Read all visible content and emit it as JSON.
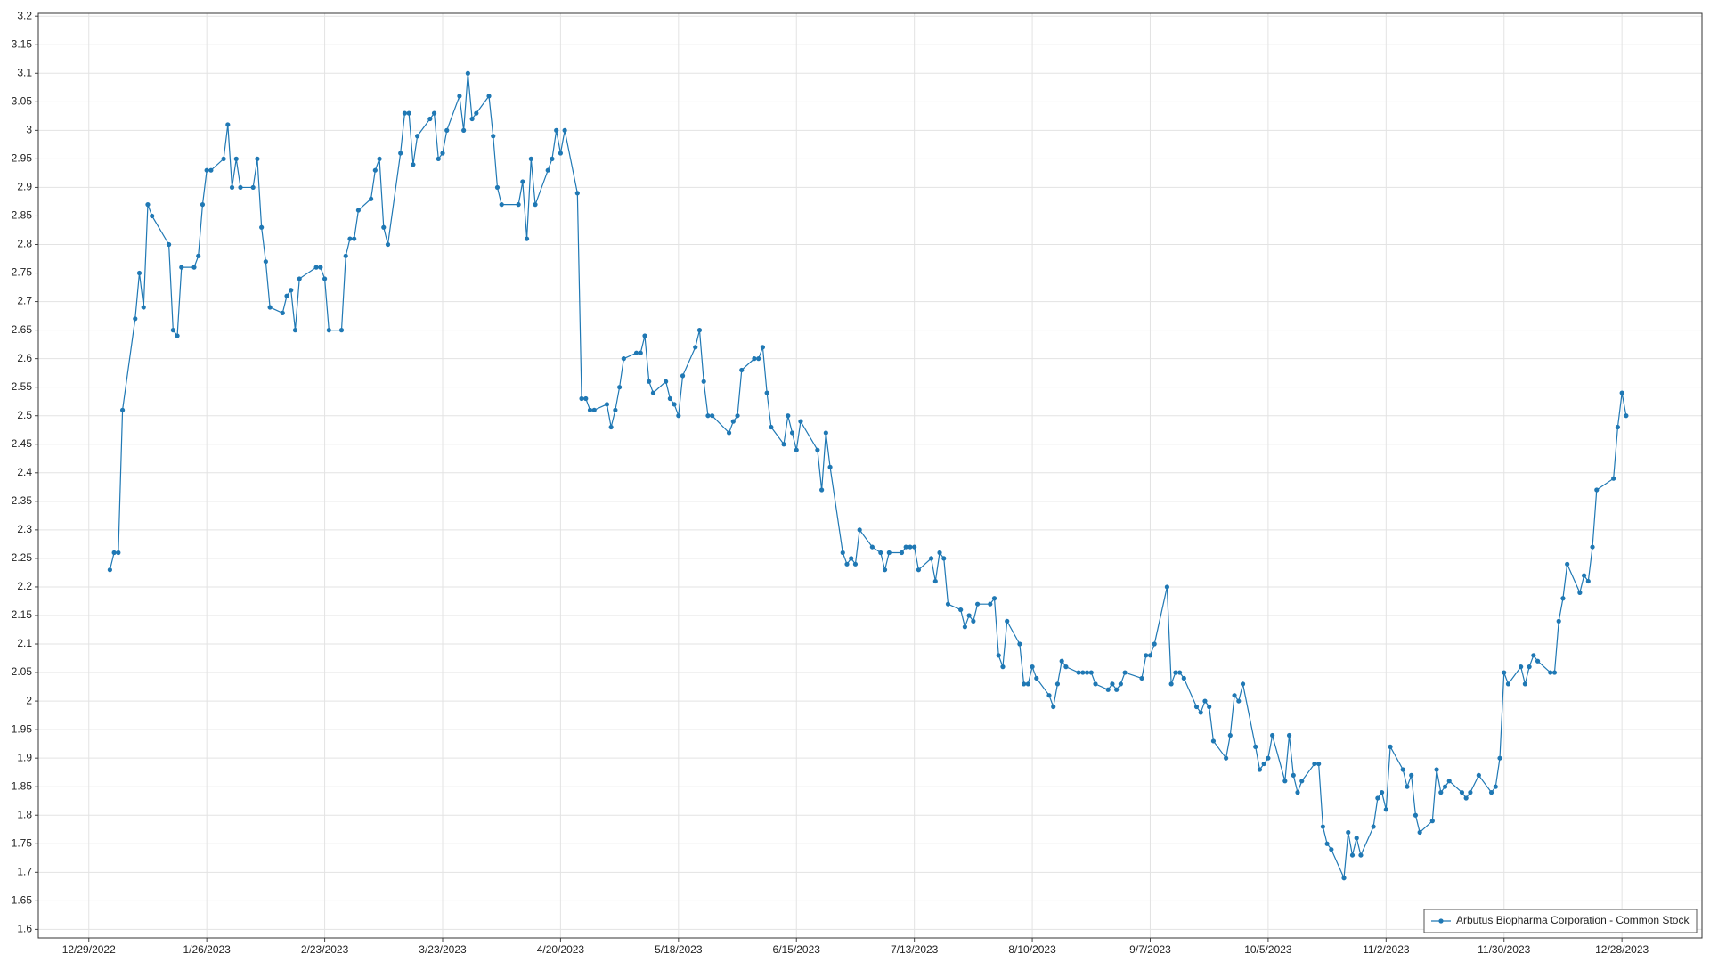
{
  "chart_data": {
    "type": "line",
    "x": [
      "2023-01-03",
      "2023-01-04",
      "2023-01-05",
      "2023-01-06",
      "2023-01-09",
      "2023-01-10",
      "2023-01-11",
      "2023-01-12",
      "2023-01-13",
      "2023-01-17",
      "2023-01-18",
      "2023-01-19",
      "2023-01-20",
      "2023-01-23",
      "2023-01-24",
      "2023-01-25",
      "2023-01-26",
      "2023-01-27",
      "2023-01-30",
      "2023-01-31",
      "2023-02-01",
      "2023-02-02",
      "2023-02-03",
      "2023-02-06",
      "2023-02-07",
      "2023-02-08",
      "2023-02-09",
      "2023-02-10",
      "2023-02-13",
      "2023-02-14",
      "2023-02-15",
      "2023-02-16",
      "2023-02-17",
      "2023-02-21",
      "2023-02-22",
      "2023-02-23",
      "2023-02-24",
      "2023-02-27",
      "2023-02-28",
      "2023-03-01",
      "2023-03-02",
      "2023-03-03",
      "2023-03-06",
      "2023-03-07",
      "2023-03-08",
      "2023-03-09",
      "2023-03-10",
      "2023-03-13",
      "2023-03-14",
      "2023-03-15",
      "2023-03-16",
      "2023-03-17",
      "2023-03-20",
      "2023-03-21",
      "2023-03-22",
      "2023-03-23",
      "2023-03-24",
      "2023-03-27",
      "2023-03-28",
      "2023-03-29",
      "2023-03-30",
      "2023-03-31",
      "2023-04-03",
      "2023-04-04",
      "2023-04-05",
      "2023-04-06",
      "2023-04-10",
      "2023-04-11",
      "2023-04-12",
      "2023-04-13",
      "2023-04-14",
      "2023-04-17",
      "2023-04-18",
      "2023-04-19",
      "2023-04-20",
      "2023-04-21",
      "2023-04-24",
      "2023-04-25",
      "2023-04-26",
      "2023-04-27",
      "2023-04-28",
      "2023-05-01",
      "2023-05-02",
      "2023-05-03",
      "2023-05-04",
      "2023-05-05",
      "2023-05-08",
      "2023-05-09",
      "2023-05-10",
      "2023-05-11",
      "2023-05-12",
      "2023-05-15",
      "2023-05-16",
      "2023-05-17",
      "2023-05-18",
      "2023-05-19",
      "2023-05-22",
      "2023-05-23",
      "2023-05-24",
      "2023-05-25",
      "2023-05-26",
      "2023-05-30",
      "2023-05-31",
      "2023-06-01",
      "2023-06-02",
      "2023-06-05",
      "2023-06-06",
      "2023-06-07",
      "2023-06-08",
      "2023-06-09",
      "2023-06-12",
      "2023-06-13",
      "2023-06-14",
      "2023-06-15",
      "2023-06-16",
      "2023-06-20",
      "2023-06-21",
      "2023-06-22",
      "2023-06-23",
      "2023-06-26",
      "2023-06-27",
      "2023-06-28",
      "2023-06-29",
      "2023-06-30",
      "2023-07-03",
      "2023-07-05",
      "2023-07-06",
      "2023-07-07",
      "2023-07-10",
      "2023-07-11",
      "2023-07-12",
      "2023-07-13",
      "2023-07-14",
      "2023-07-17",
      "2023-07-18",
      "2023-07-19",
      "2023-07-20",
      "2023-07-21",
      "2023-07-24",
      "2023-07-25",
      "2023-07-26",
      "2023-07-27",
      "2023-07-28",
      "2023-07-31",
      "2023-08-01",
      "2023-08-02",
      "2023-08-03",
      "2023-08-04",
      "2023-08-07",
      "2023-08-08",
      "2023-08-09",
      "2023-08-10",
      "2023-08-11",
      "2023-08-14",
      "2023-08-15",
      "2023-08-16",
      "2023-08-17",
      "2023-08-18",
      "2023-08-21",
      "2023-08-22",
      "2023-08-23",
      "2023-08-24",
      "2023-08-25",
      "2023-08-28",
      "2023-08-29",
      "2023-08-30",
      "2023-08-31",
      "2023-09-01",
      "2023-09-05",
      "2023-09-06",
      "2023-09-07",
      "2023-09-08",
      "2023-09-11",
      "2023-09-12",
      "2023-09-13",
      "2023-09-14",
      "2023-09-15",
      "2023-09-18",
      "2023-09-19",
      "2023-09-20",
      "2023-09-21",
      "2023-09-22",
      "2023-09-25",
      "2023-09-26",
      "2023-09-27",
      "2023-09-28",
      "2023-09-29",
      "2023-10-02",
      "2023-10-03",
      "2023-10-04",
      "2023-10-05",
      "2023-10-06",
      "2023-10-09",
      "2023-10-10",
      "2023-10-11",
      "2023-10-12",
      "2023-10-13",
      "2023-10-16",
      "2023-10-17",
      "2023-10-18",
      "2023-10-19",
      "2023-10-20",
      "2023-10-23",
      "2023-10-24",
      "2023-10-25",
      "2023-10-26",
      "2023-10-27",
      "2023-10-30",
      "2023-10-31",
      "2023-11-01",
      "2023-11-02",
      "2023-11-03",
      "2023-11-06",
      "2023-11-07",
      "2023-11-08",
      "2023-11-09",
      "2023-11-10",
      "2023-11-13",
      "2023-11-14",
      "2023-11-15",
      "2023-11-16",
      "2023-11-17",
      "2023-11-20",
      "2023-11-21",
      "2023-11-22",
      "2023-11-24",
      "2023-11-27",
      "2023-11-28",
      "2023-11-29",
      "2023-11-30",
      "2023-12-01",
      "2023-12-04",
      "2023-12-05",
      "2023-12-06",
      "2023-12-07",
      "2023-12-08",
      "2023-12-11",
      "2023-12-12",
      "2023-12-13",
      "2023-12-14",
      "2023-12-15",
      "2023-12-18",
      "2023-12-19",
      "2023-12-20",
      "2023-12-21",
      "2023-12-22",
      "2023-12-26",
      "2023-12-27",
      "2023-12-28",
      "2023-12-29"
    ],
    "series": [
      {
        "name": "Arbutus Biopharma Corporation - Common Stock",
        "color": "#1f78b4",
        "values": [
          2.23,
          2.26,
          2.26,
          2.51,
          2.67,
          2.75,
          2.69,
          2.87,
          2.85,
          2.8,
          2.65,
          2.64,
          2.76,
          2.76,
          2.78,
          2.87,
          2.93,
          2.93,
          2.95,
          3.01,
          2.9,
          2.95,
          2.9,
          2.9,
          2.95,
          2.83,
          2.77,
          2.69,
          2.68,
          2.71,
          2.72,
          2.65,
          2.74,
          2.76,
          2.76,
          2.74,
          2.65,
          2.65,
          2.78,
          2.81,
          2.81,
          2.86,
          2.88,
          2.93,
          2.95,
          2.83,
          2.8,
          2.96,
          3.03,
          3.03,
          2.94,
          2.99,
          3.02,
          3.03,
          2.95,
          2.96,
          3.0,
          3.06,
          3.0,
          3.1,
          3.02,
          3.03,
          3.06,
          2.99,
          2.9,
          2.87,
          2.87,
          2.91,
          2.81,
          2.95,
          2.87,
          2.93,
          2.95,
          3.0,
          2.96,
          3.0,
          2.89,
          2.53,
          2.53,
          2.51,
          2.51,
          2.52,
          2.48,
          2.51,
          2.55,
          2.6,
          2.61,
          2.61,
          2.64,
          2.56,
          2.54,
          2.56,
          2.53,
          2.52,
          2.5,
          2.57,
          2.62,
          2.65,
          2.56,
          2.5,
          2.5,
          2.47,
          2.49,
          2.5,
          2.58,
          2.6,
          2.6,
          2.62,
          2.54,
          2.48,
          2.45,
          2.5,
          2.47,
          2.44,
          2.49,
          2.44,
          2.37,
          2.47,
          2.41,
          2.26,
          2.24,
          2.25,
          2.24,
          2.3,
          2.27,
          2.26,
          2.23,
          2.26,
          2.26,
          2.27,
          2.27,
          2.27,
          2.23,
          2.25,
          2.21,
          2.26,
          2.25,
          2.17,
          2.16,
          2.13,
          2.15,
          2.14,
          2.17,
          2.17,
          2.18,
          2.08,
          2.06,
          2.14,
          2.1,
          2.03,
          2.03,
          2.06,
          2.04,
          2.01,
          1.99,
          2.03,
          2.07,
          2.06,
          2.05,
          2.05,
          2.05,
          2.05,
          2.03,
          2.02,
          2.03,
          2.02,
          2.03,
          2.05,
          2.04,
          2.08,
          2.08,
          2.1,
          2.2,
          2.03,
          2.05,
          2.05,
          2.04,
          1.99,
          1.98,
          2.0,
          1.99,
          1.93,
          1.9,
          1.94,
          2.01,
          2.0,
          2.03,
          1.92,
          1.88,
          1.89,
          1.9,
          1.94,
          1.86,
          1.94,
          1.87,
          1.84,
          1.86,
          1.89,
          1.89,
          1.78,
          1.75,
          1.74,
          1.69,
          1.77,
          1.73,
          1.76,
          1.73,
          1.78,
          1.83,
          1.84,
          1.81,
          1.92,
          1.88,
          1.85,
          1.87,
          1.8,
          1.77,
          1.79,
          1.88,
          1.84,
          1.85,
          1.86,
          1.84,
          1.83,
          1.84,
          1.87,
          1.84,
          1.85,
          1.9,
          2.05,
          2.03,
          2.06,
          2.03,
          2.06,
          2.08,
          2.07,
          2.05,
          2.05,
          2.14,
          2.18,
          2.24,
          2.19,
          2.22,
          2.21,
          2.27,
          2.37,
          2.39,
          2.48,
          2.54,
          2.5
        ]
      }
    ],
    "xlim": [
      "2022-12-17",
      "2024-01-16"
    ],
    "xticks": [
      {
        "value": "2022-12-29",
        "label": "12/29/2022"
      },
      {
        "value": "2023-01-26",
        "label": "1/26/2023"
      },
      {
        "value": "2023-02-23",
        "label": "2/23/2023"
      },
      {
        "value": "2023-03-23",
        "label": "3/23/2023"
      },
      {
        "value": "2023-04-20",
        "label": "4/20/2023"
      },
      {
        "value": "2023-05-18",
        "label": "5/18/2023"
      },
      {
        "value": "2023-06-15",
        "label": "6/15/2023"
      },
      {
        "value": "2023-07-13",
        "label": "7/13/2023"
      },
      {
        "value": "2023-08-10",
        "label": "8/10/2023"
      },
      {
        "value": "2023-09-07",
        "label": "9/7/2023"
      },
      {
        "value": "2023-10-05",
        "label": "10/5/2023"
      },
      {
        "value": "2023-11-02",
        "label": "11/2/2023"
      },
      {
        "value": "2023-11-30",
        "label": "11/30/2023"
      },
      {
        "value": "2023-12-28",
        "label": "12/28/2023"
      }
    ],
    "ylim": [
      1.585,
      3.205
    ],
    "yticks": [
      1.6,
      1.65,
      1.7,
      1.75,
      1.8,
      1.85,
      1.9,
      1.95,
      2,
      2.05,
      2.1,
      2.15,
      2.2,
      2.25,
      2.3,
      2.35,
      2.4,
      2.45,
      2.5,
      2.55,
      2.6,
      2.65,
      2.7,
      2.75,
      2.8,
      2.85,
      2.9,
      2.95,
      3,
      3.05,
      3.1,
      3.15,
      3.2
    ],
    "grid": true,
    "legend": "lower right"
  }
}
